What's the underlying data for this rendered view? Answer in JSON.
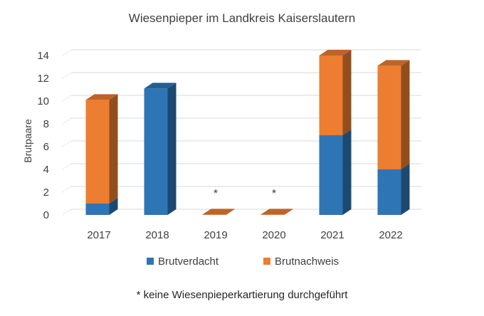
{
  "chart_data": {
    "type": "bar",
    "stacked": true,
    "title": "Wiesenpieper im Landkreis Kaiserslautern",
    "ylabel": "Brutpaare",
    "xlabel": "",
    "categories": [
      "2017",
      "2018",
      "2019",
      "2020",
      "2021",
      "2022"
    ],
    "ylim": [
      0,
      14
    ],
    "yticks": [
      0,
      2,
      4,
      6,
      8,
      10,
      12,
      14
    ],
    "grid": true,
    "legend_position": "bottom",
    "series": [
      {
        "name": "Brutverdacht",
        "color": "#2E75B6",
        "values": [
          1,
          11.1,
          0,
          0,
          7,
          4
        ]
      },
      {
        "name": "Brutnachweis",
        "color": "#ED7D31",
        "values": [
          9.1,
          0,
          0,
          0,
          7,
          9.1
        ]
      }
    ],
    "annotations": [
      {
        "category": "2019",
        "text": "*"
      },
      {
        "category": "2020",
        "text": "*"
      }
    ],
    "footnote": "* keine Wiesenpieperkartierung durchgeführt"
  }
}
